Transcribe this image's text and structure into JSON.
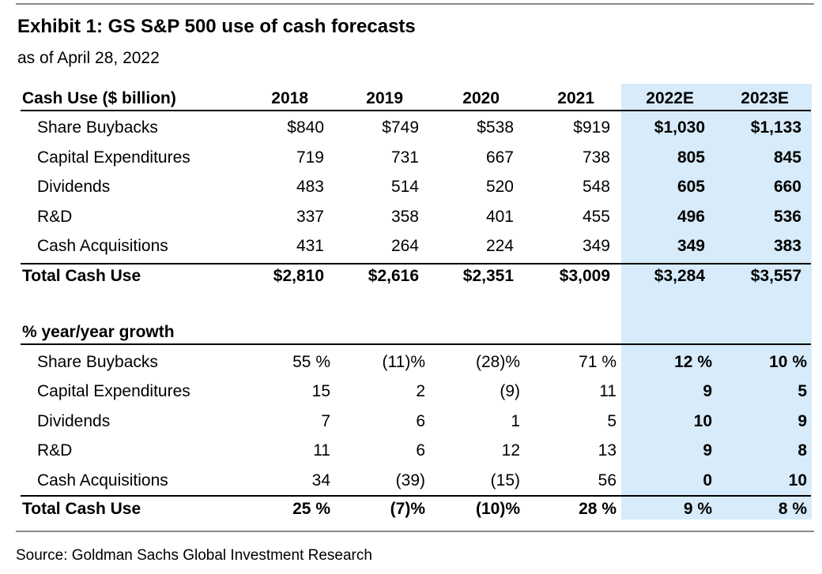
{
  "title": "Exhibit 1: GS S&P 500 use of cash forecasts",
  "subtitle": "as of April 28, 2022",
  "source": "Source: Goldman Sachs Global Investment Research",
  "shade_color": "#d7ebfa",
  "header": {
    "label": "Cash Use ($ billion)",
    "years": [
      "2018",
      "2019",
      "2020",
      "2021",
      "2022E",
      "2023E"
    ]
  },
  "cash_rows": [
    {
      "label": "Share Buybacks",
      "values": [
        "$840",
        "$749",
        "$538",
        "$919",
        "$1,030",
        "$1,133"
      ]
    },
    {
      "label": "Capital Expenditures",
      "values": [
        "719",
        "731",
        "667",
        "738",
        "805",
        "845"
      ]
    },
    {
      "label": "Dividends",
      "values": [
        "483",
        "514",
        "520",
        "548",
        "605",
        "660"
      ]
    },
    {
      "label": "R&D",
      "values": [
        "337",
        "358",
        "401",
        "455",
        "496",
        "536"
      ]
    },
    {
      "label": "Cash Acquisitions",
      "values": [
        "431",
        "264",
        "224",
        "349",
        "349",
        "383"
      ]
    }
  ],
  "cash_total": {
    "label": "Total Cash Use",
    "values": [
      "$2,810",
      "$2,616",
      "$2,351",
      "$3,009",
      "$3,284",
      "$3,557"
    ]
  },
  "growth_header": "% year/year growth",
  "growth_rows": [
    {
      "label": "Share Buybacks",
      "values": [
        "55 %",
        "(11)%",
        "(28)%",
        "71 %",
        "12 %",
        "10 %"
      ]
    },
    {
      "label": "Capital Expenditures",
      "values": [
        "15",
        "2",
        "(9)",
        "11",
        "9",
        "5"
      ]
    },
    {
      "label": "Dividends",
      "values": [
        "7",
        "6",
        "1",
        "5",
        "10",
        "9"
      ]
    },
    {
      "label": "R&D",
      "values": [
        "11",
        "6",
        "12",
        "13",
        "9",
        "8"
      ]
    },
    {
      "label": "Cash Acquisitions",
      "values": [
        "34",
        "(39)",
        "(15)",
        "56",
        "0",
        "10"
      ]
    }
  ],
  "growth_total": {
    "label": "Total Cash Use",
    "values": [
      "25 %",
      "(7)%",
      "(10)%",
      "28 %",
      "9 %",
      "8 %"
    ]
  }
}
